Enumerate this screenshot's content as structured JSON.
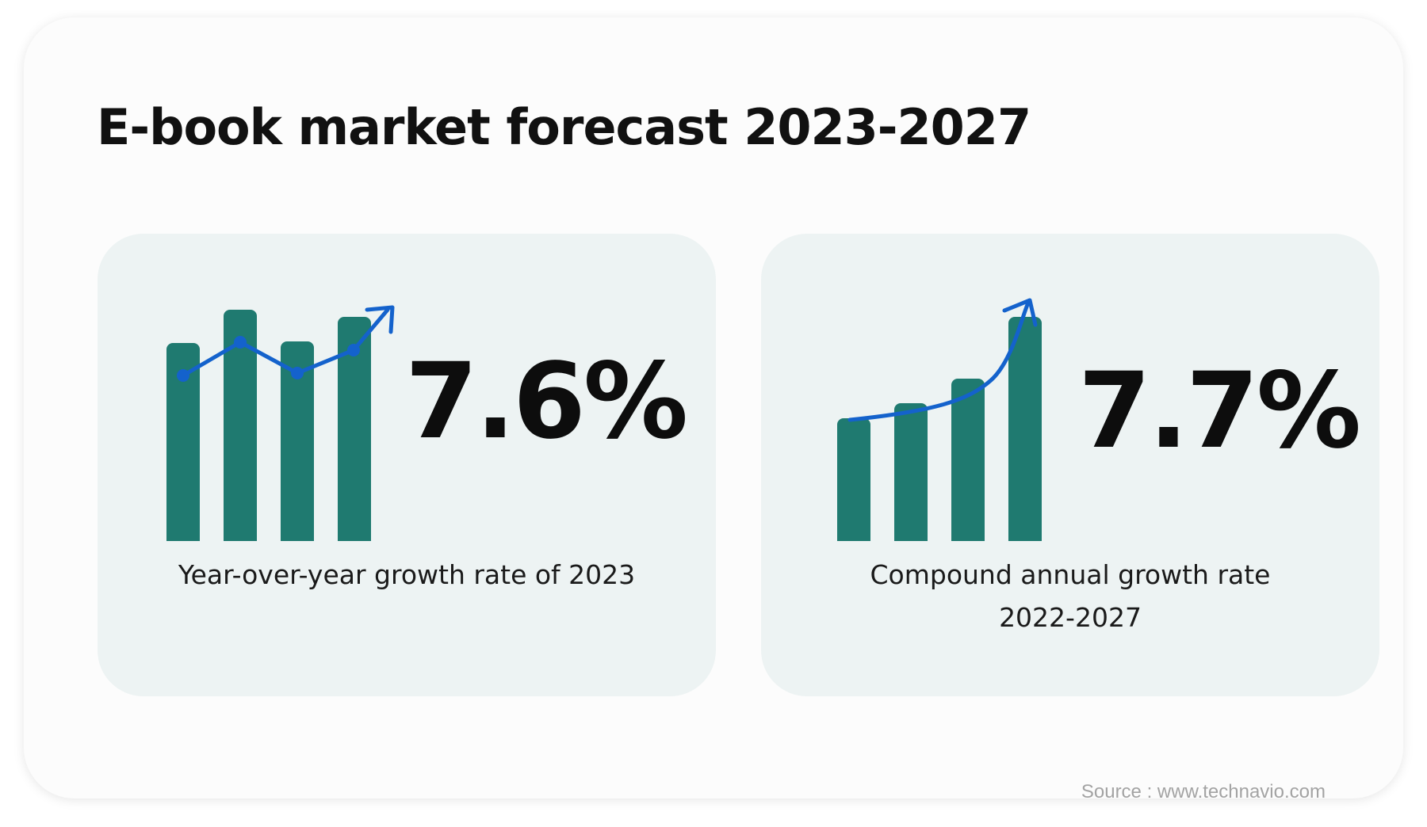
{
  "title": "E-book market forecast 2023-2027",
  "colors": {
    "bar": "#1f7a70",
    "trend": "#1462cc",
    "panel": "#edf3f3",
    "text": "#0d0d0d",
    "source": "#a3a3a3"
  },
  "cards": [
    {
      "value": "7.6%",
      "caption_line1": "Year-over-year growth rate of 2023",
      "caption_line2": "",
      "icon": "bar-chart-line-up-icon"
    },
    {
      "value": "7.7%",
      "caption_line1": "Compound annual growth rate",
      "caption_line2": "2022-2027",
      "icon": "bar-chart-curve-up-icon"
    }
  ],
  "source": "Source : www.technavio.com"
}
